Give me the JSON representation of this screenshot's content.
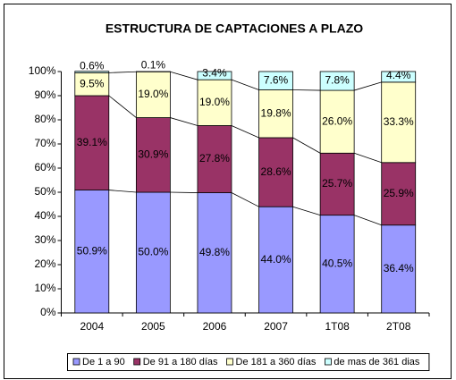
{
  "chart_data": {
    "type": "stacked_bar_percent",
    "title": "ESTRUCTURA DE CAPTACIONES A PLAZO",
    "categories": [
      "2004",
      "2005",
      "2006",
      "2007",
      "1T08",
      "2T08"
    ],
    "series": [
      {
        "name": "De 1 a 90",
        "color": "#9999ff",
        "values": [
          50.9,
          50.0,
          49.8,
          44.0,
          40.5,
          36.4
        ],
        "value_labels": [
          "50.9%",
          "50.0%",
          "49.8%",
          "44.0%",
          "40.5%",
          "36.4%"
        ]
      },
      {
        "name": "De 91 a 180 días",
        "color": "#993366",
        "values": [
          39.1,
          30.9,
          27.8,
          28.6,
          25.7,
          25.9
        ],
        "value_labels": [
          "39.1%",
          "30.9%",
          "27.8%",
          "28.6%",
          "25.7%",
          "25.9%"
        ]
      },
      {
        "name": "De 181 a 360 días",
        "color": "#ffffcc",
        "values": [
          9.5,
          19.0,
          19.0,
          19.8,
          26.0,
          33.3
        ],
        "value_labels": [
          "9.5%",
          "19.0%",
          "19.0%",
          "19.8%",
          "26.0%",
          "33.3%"
        ]
      },
      {
        "name": "de mas de 361 dias",
        "color": "#ccffff",
        "values": [
          0.6,
          0.1,
          3.4,
          7.6,
          7.8,
          4.4
        ],
        "value_labels": [
          "0.6%",
          "0.1%",
          "3.4%",
          "7.6%",
          "7.8%",
          "4.4%"
        ]
      }
    ],
    "ylim": [
      0,
      100
    ],
    "yticks": [
      {
        "value": 0,
        "label": "0%"
      },
      {
        "value": 10,
        "label": "10%"
      },
      {
        "value": 20,
        "label": "20%"
      },
      {
        "value": 30,
        "label": "30%"
      },
      {
        "value": 40,
        "label": "40%"
      },
      {
        "value": 50,
        "label": "50%"
      },
      {
        "value": 60,
        "label": "60%"
      },
      {
        "value": 70,
        "label": "70%"
      },
      {
        "value": 80,
        "label": "80%"
      },
      {
        "value": 90,
        "label": "90%"
      },
      {
        "value": 100,
        "label": "100%"
      }
    ],
    "legend": "bottom"
  }
}
